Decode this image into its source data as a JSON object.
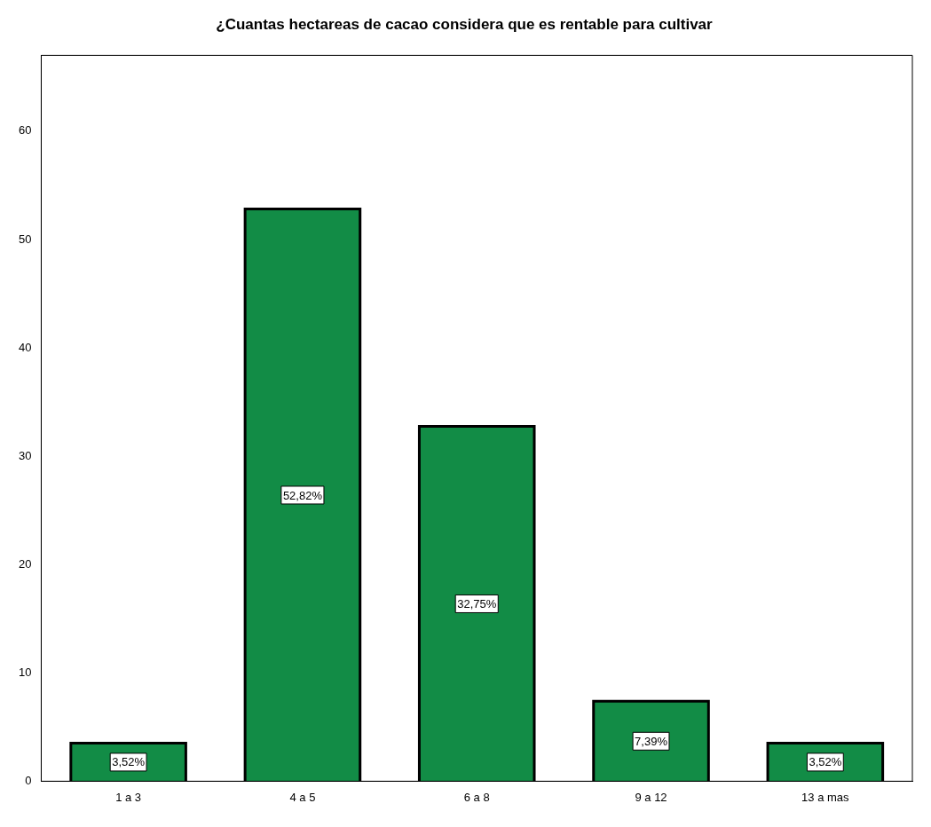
{
  "chart_data": {
    "type": "bar",
    "title": "¿Cuantas hectareas de cacao considera que es rentable para cultivar",
    "categories": [
      "1 a 3",
      "4 a 5",
      "6 a 8",
      "9 a 12",
      "13 a mas"
    ],
    "values": [
      3.52,
      52.82,
      32.75,
      7.39,
      3.52
    ],
    "value_labels": [
      "3,52%",
      "52,82%",
      "32,75%",
      "7,39%",
      "3,52%"
    ],
    "color": "#128c46",
    "ylim": [
      0,
      67
    ],
    "yticks": [
      0,
      10,
      20,
      30,
      40,
      50,
      60
    ],
    "grid": false,
    "legend": false
  }
}
